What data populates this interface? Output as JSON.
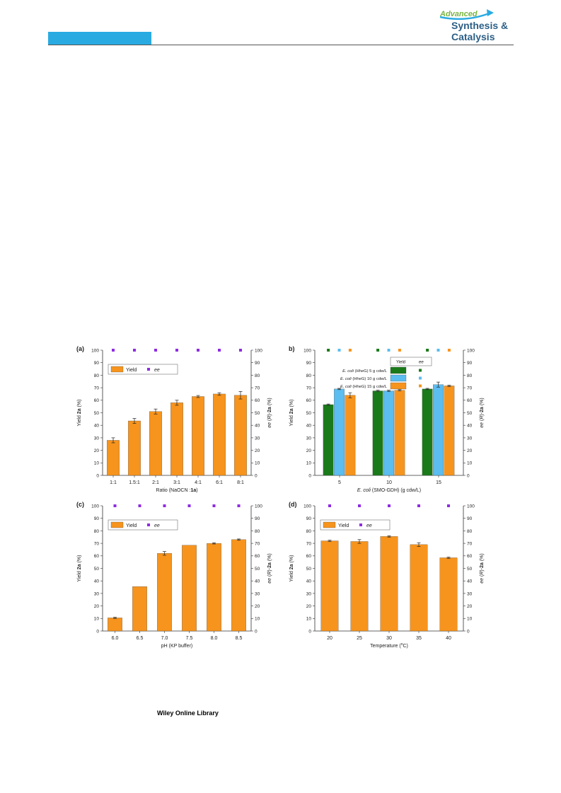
{
  "header": {
    "logo_line1": "Advanced",
    "logo_line2": "Synthesis &",
    "logo_line3": "Catalysis",
    "accent_color": "#29abe2",
    "logo_green": "#7ab542",
    "logo_navy": "#2c5f86"
  },
  "footer": {
    "text": "Wiley Online Library"
  },
  "chart_data": [
    {
      "type": "bar",
      "panel_label": "(a)",
      "categories": [
        "1:1",
        "1.5:1",
        "2:1",
        "3:1",
        "4:1",
        "6:1",
        "8:1"
      ],
      "series": [
        {
          "name": "Yield",
          "values": [
            28,
            43.5,
            51,
            58,
            63,
            65,
            64
          ],
          "errors": [
            2,
            2,
            2,
            2,
            0.8,
            1,
            3
          ],
          "color": "#f7941d"
        },
        {
          "name": "ee",
          "values": [
            100,
            100,
            100,
            100,
            100,
            100,
            100
          ],
          "color": "#8e2ce0",
          "kind": "marker"
        }
      ],
      "xlabel_parts": [
        "Ratio (NaOCN :",
        "1a",
        ")"
      ],
      "ylabel_parts": [
        "Yield ",
        "2a",
        " (%)"
      ],
      "y2label_parts": [
        "ee",
        " (",
        "R",
        ")-",
        "2a",
        " (%)"
      ],
      "ylim": [
        0,
        100
      ],
      "y2lim": [
        0,
        100
      ],
      "yticks": [
        "0",
        "10",
        "20",
        "30",
        "40",
        "50",
        "60",
        "70",
        "80",
        "90",
        "100"
      ],
      "legend_placement": "top-left",
      "legend": [
        "Yield",
        "ee"
      ]
    },
    {
      "type": "bar",
      "panel_label": "b)",
      "categories": [
        "5",
        "10",
        "15"
      ],
      "series": [
        {
          "name": "E. coli (HheG)  5 g cdw/L",
          "values": [
            56.5,
            67.5,
            69
          ],
          "errors": [
            0.5,
            0.5,
            0.5
          ],
          "color": "#1a7a1a"
        },
        {
          "name": "E. coli (HheG)  10 g cdw/L",
          "values": [
            69,
            67.5,
            72.5
          ],
          "errors": [
            0.5,
            0.5,
            2
          ],
          "color": "#5bbdf0"
        },
        {
          "name": "E. coli (HheG)  15 g cdw/L",
          "values": [
            64,
            68,
            71.5
          ],
          "errors": [
            2,
            0.5,
            0.5
          ],
          "color": "#f7941d"
        }
      ],
      "ee_values": [
        100,
        100,
        100
      ],
      "xlabel_parts": [
        "E. coli",
        " (SMO-GDH) (g cdw/L)"
      ],
      "ylabel_parts": [
        "Yield ",
        "2a",
        " (%)"
      ],
      "y2label_parts": [
        "ee",
        " (",
        "R",
        ")-",
        "2a",
        " (%)"
      ],
      "ylim": [
        0,
        100
      ],
      "y2lim": [
        0,
        100
      ],
      "yticks": [
        "0",
        "10",
        "20",
        "30",
        "40",
        "50",
        "60",
        "70",
        "80",
        "90",
        "100"
      ],
      "legend_headers": [
        "Yield",
        "ee"
      ],
      "legend_rows": [
        {
          "italic": "E. coli",
          "rest": " (HheG)   5 g cdw/L"
        },
        {
          "italic": "E. coli",
          "rest": " (HheG)  10 g cdw/L"
        },
        {
          "italic": "E. coli",
          "rest": " (HheG)  15 g cdw/L"
        }
      ],
      "legend_placement": "top-left"
    },
    {
      "type": "bar",
      "panel_label": "(c)",
      "categories": [
        "6.0",
        "6.5",
        "7.0",
        "7.5",
        "8.0",
        "8.5"
      ],
      "series": [
        {
          "name": "Yield",
          "values": [
            10.5,
            35.5,
            62,
            68.5,
            70,
            73
          ],
          "errors": [
            0.5,
            0,
            1.5,
            0,
            0.5,
            0.5
          ],
          "color": "#f7941d"
        },
        {
          "name": "ee",
          "values": [
            100,
            100,
            100,
            100,
            100,
            100
          ],
          "color": "#8e2ce0",
          "kind": "marker"
        }
      ],
      "xlabel_parts": [
        "pH (KP buffer)"
      ],
      "ylabel_parts": [
        "Yield ",
        "2a",
        " (%)"
      ],
      "y2label_parts": [
        "ee",
        " (",
        "R",
        ")-",
        "2a",
        " (%)"
      ],
      "ylim": [
        0,
        100
      ],
      "y2lim": [
        0,
        100
      ],
      "yticks": [
        "0",
        "10",
        "20",
        "30",
        "40",
        "50",
        "60",
        "70",
        "80",
        "90",
        "100"
      ],
      "legend_placement": "top-left",
      "legend": [
        "Yield",
        "ee"
      ]
    },
    {
      "type": "bar",
      "panel_label": "(d)",
      "categories": [
        "20",
        "25",
        "30",
        "35",
        "40"
      ],
      "series": [
        {
          "name": "Yield",
          "values": [
            72,
            71.5,
            75.5,
            69,
            58.5
          ],
          "errors": [
            0.5,
            1.5,
            0.5,
            1.5,
            0.5
          ],
          "color": "#f7941d"
        },
        {
          "name": "ee",
          "values": [
            100,
            100,
            100,
            100,
            100
          ],
          "color": "#8e2ce0",
          "kind": "marker"
        }
      ],
      "xlabel_parts": [
        "Temperature (",
        "o",
        "C)"
      ],
      "ylabel_parts": [
        "Yield ",
        "2a",
        " (%)"
      ],
      "y2label_parts": [
        "ee",
        " (",
        "R",
        ")-",
        "2a",
        " (%)"
      ],
      "ylim": [
        0,
        100
      ],
      "y2lim": [
        0,
        100
      ],
      "yticks": [
        "0",
        "10",
        "20",
        "30",
        "40",
        "50",
        "60",
        "70",
        "80",
        "90",
        "100"
      ],
      "legend_placement": "top-left",
      "legend": [
        "Yield",
        "ee"
      ]
    }
  ]
}
